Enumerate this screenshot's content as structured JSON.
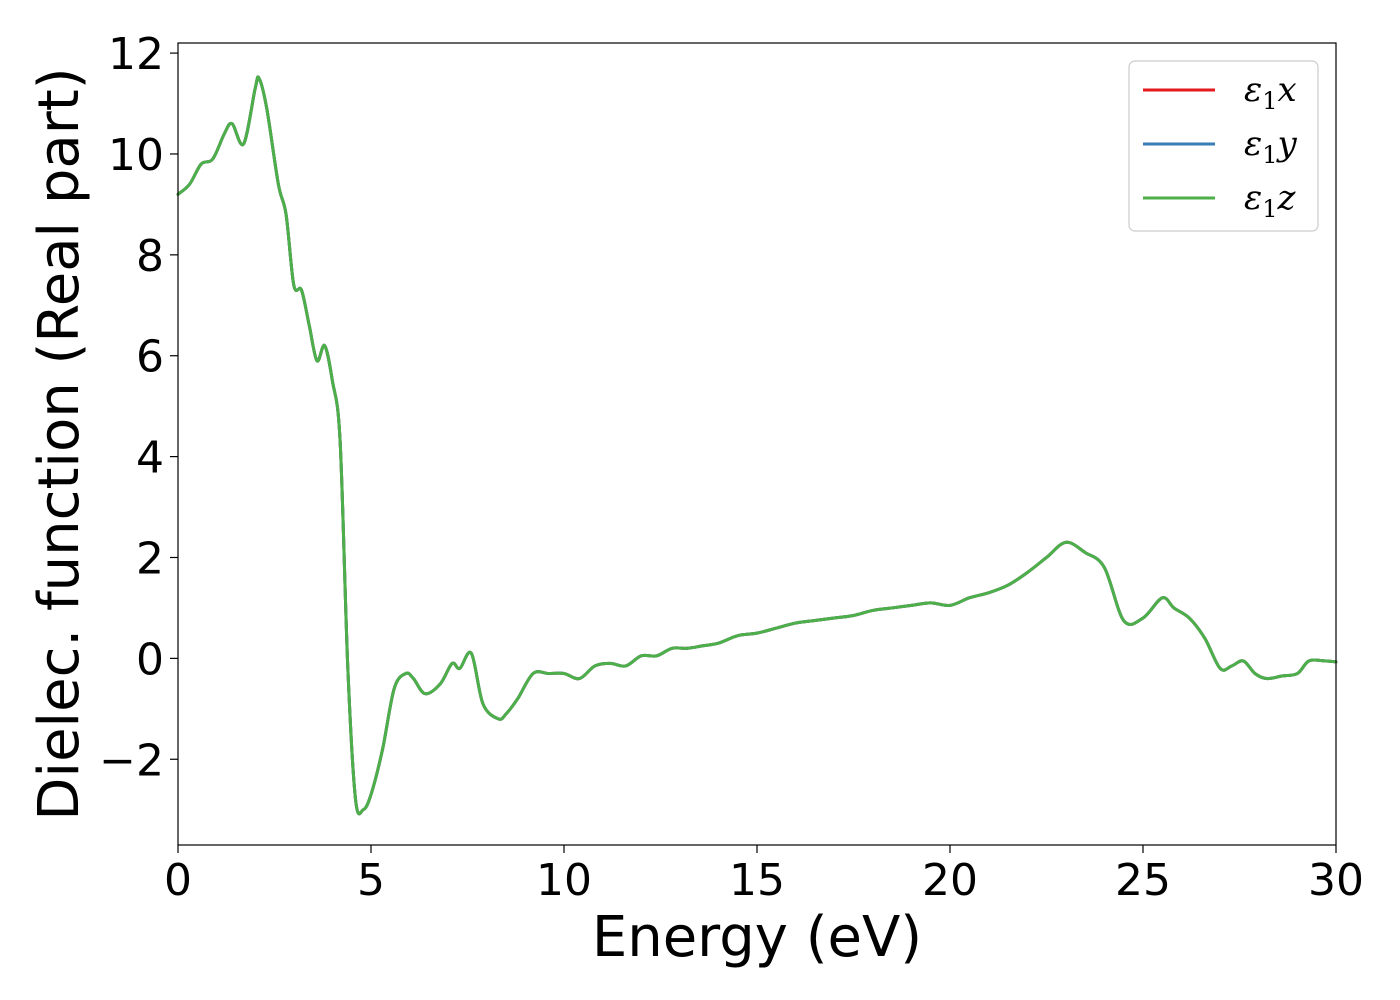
{
  "chart_data": {
    "type": "line",
    "title": "",
    "xlabel": "Energy (eV)",
    "ylabel": "Dielec. function (Real part)",
    "xlim": [
      0,
      30
    ],
    "ylim": [
      -3.7,
      12.2
    ],
    "xticks": [
      0,
      5,
      10,
      15,
      20,
      25,
      30
    ],
    "xtick_labels": [
      "0",
      "5",
      "10",
      "15",
      "20",
      "25",
      "30"
    ],
    "yticks": [
      -2,
      0,
      2,
      4,
      6,
      8,
      10,
      12
    ],
    "ytick_labels": [
      "−2",
      "0",
      "2",
      "4",
      "6",
      "8",
      "10",
      "12"
    ],
    "grid": false,
    "legend_position": "top-right",
    "x": [
      0,
      0.3,
      0.6,
      0.9,
      1.2,
      1.4,
      1.7,
      2.0,
      2.1,
      2.3,
      2.6,
      2.8,
      3.0,
      3.2,
      3.4,
      3.6,
      3.8,
      4.0,
      4.2,
      4.4,
      4.6,
      4.8,
      5.0,
      5.3,
      5.6,
      5.9,
      6.1,
      6.4,
      6.8,
      7.1,
      7.3,
      7.6,
      7.9,
      8.3,
      8.5,
      8.8,
      9.2,
      9.6,
      10.0,
      10.4,
      10.8,
      11.2,
      11.6,
      12.0,
      12.4,
      12.8,
      13.2,
      13.6,
      14.0,
      14.5,
      15.0,
      15.5,
      16.0,
      16.5,
      17.0,
      17.5,
      18.0,
      18.5,
      19.0,
      19.5,
      20.0,
      20.5,
      21.0,
      21.5,
      22.0,
      22.5,
      23.0,
      23.5,
      24.0,
      24.5,
      25.0,
      25.5,
      25.8,
      26.2,
      26.6,
      27.0,
      27.3,
      27.6,
      27.9,
      28.2,
      28.6,
      29.0,
      29.3,
      29.7,
      30.0
    ],
    "series": [
      {
        "name": "ε₁x",
        "color": "#e41a1c",
        "y": [
          9.2,
          9.4,
          9.8,
          9.9,
          10.4,
          10.6,
          10.2,
          11.3,
          11.5,
          10.9,
          9.4,
          8.8,
          7.4,
          7.3,
          6.6,
          5.9,
          6.2,
          5.5,
          4.3,
          -0.2,
          -2.8,
          -3.0,
          -2.7,
          -1.8,
          -0.6,
          -0.3,
          -0.4,
          -0.7,
          -0.5,
          -0.1,
          -0.2,
          0.1,
          -0.9,
          -1.2,
          -1.1,
          -0.8,
          -0.3,
          -0.3,
          -0.3,
          -0.4,
          -0.15,
          -0.1,
          -0.15,
          0.05,
          0.05,
          0.2,
          0.2,
          0.25,
          0.3,
          0.45,
          0.5,
          0.6,
          0.7,
          0.75,
          0.8,
          0.85,
          0.95,
          1.0,
          1.05,
          1.1,
          1.05,
          1.2,
          1.3,
          1.45,
          1.7,
          2.0,
          2.3,
          2.1,
          1.8,
          0.75,
          0.8,
          1.2,
          1.0,
          0.8,
          0.4,
          -0.2,
          -0.15,
          -0.05,
          -0.3,
          -0.4,
          -0.35,
          -0.3,
          -0.05,
          -0.05,
          -0.07
        ]
      },
      {
        "name": "ε₁y",
        "color": "#377eb8",
        "y": [
          9.2,
          9.4,
          9.8,
          9.9,
          10.4,
          10.6,
          10.2,
          11.3,
          11.5,
          10.9,
          9.4,
          8.8,
          7.4,
          7.3,
          6.6,
          5.9,
          6.2,
          5.5,
          4.3,
          -0.2,
          -2.8,
          -3.0,
          -2.7,
          -1.8,
          -0.6,
          -0.3,
          -0.4,
          -0.7,
          -0.5,
          -0.1,
          -0.2,
          0.1,
          -0.9,
          -1.2,
          -1.1,
          -0.8,
          -0.3,
          -0.3,
          -0.3,
          -0.4,
          -0.15,
          -0.1,
          -0.15,
          0.05,
          0.05,
          0.2,
          0.2,
          0.25,
          0.3,
          0.45,
          0.5,
          0.6,
          0.7,
          0.75,
          0.8,
          0.85,
          0.95,
          1.0,
          1.05,
          1.1,
          1.05,
          1.2,
          1.3,
          1.45,
          1.7,
          2.0,
          2.3,
          2.1,
          1.8,
          0.75,
          0.8,
          1.2,
          1.0,
          0.8,
          0.4,
          -0.2,
          -0.15,
          -0.05,
          -0.3,
          -0.4,
          -0.35,
          -0.3,
          -0.05,
          -0.05,
          -0.07
        ]
      },
      {
        "name": "ε₁z",
        "color": "#4daf4a",
        "y": [
          9.2,
          9.4,
          9.8,
          9.9,
          10.4,
          10.6,
          10.2,
          11.3,
          11.5,
          10.9,
          9.4,
          8.8,
          7.4,
          7.3,
          6.6,
          5.9,
          6.2,
          5.5,
          4.3,
          -0.2,
          -2.8,
          -3.0,
          -2.7,
          -1.8,
          -0.6,
          -0.3,
          -0.4,
          -0.7,
          -0.5,
          -0.1,
          -0.2,
          0.1,
          -0.9,
          -1.2,
          -1.1,
          -0.8,
          -0.3,
          -0.3,
          -0.3,
          -0.4,
          -0.15,
          -0.1,
          -0.15,
          0.05,
          0.05,
          0.2,
          0.2,
          0.25,
          0.3,
          0.45,
          0.5,
          0.6,
          0.7,
          0.75,
          0.8,
          0.85,
          0.95,
          1.0,
          1.05,
          1.1,
          1.05,
          1.2,
          1.3,
          1.45,
          1.7,
          2.0,
          2.3,
          2.1,
          1.8,
          0.75,
          0.8,
          1.2,
          1.0,
          0.8,
          0.4,
          -0.2,
          -0.15,
          -0.05,
          -0.3,
          -0.4,
          -0.35,
          -0.3,
          -0.05,
          -0.05,
          -0.07
        ]
      }
    ]
  }
}
